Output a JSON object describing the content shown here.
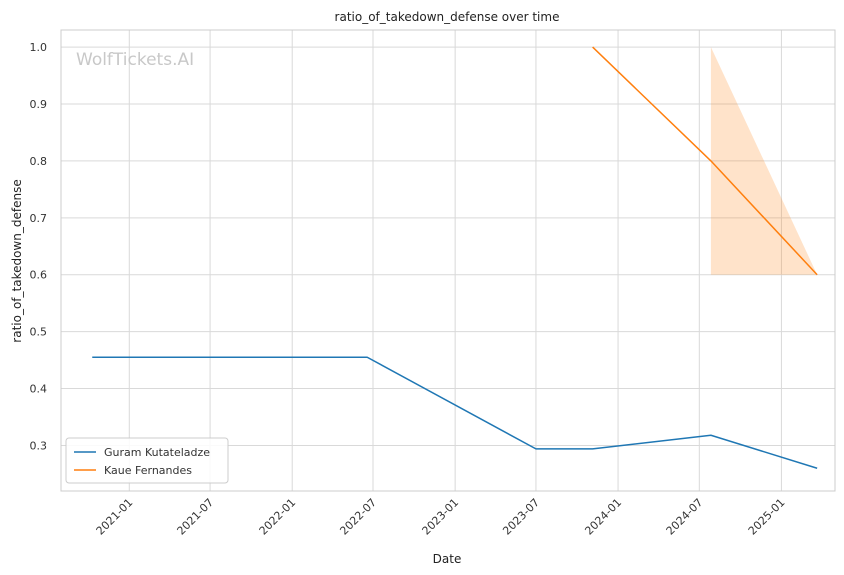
{
  "chart_data": {
    "type": "line",
    "title": "ratio_of_takedown_defense over time",
    "xlabel": "Date",
    "ylabel": "ratio_of_takedown_defense",
    "watermark": "WolfTickets.AI",
    "xlim": [
      "2020-08-01",
      "2025-05-01"
    ],
    "ylim": [
      0.22,
      1.03
    ],
    "x_ticks": [
      "2021-01-01",
      "2021-07-01",
      "2022-01-01",
      "2022-07-01",
      "2023-01-01",
      "2023-07-01",
      "2024-01-01",
      "2024-07-01",
      "2025-01-01"
    ],
    "x_tick_labels": [
      "2021-01",
      "2021-07",
      "2022-01",
      "2022-07",
      "2023-01",
      "2023-07",
      "2024-01",
      "2024-07",
      "2025-01"
    ],
    "y_ticks": [
      0.3,
      0.4,
      0.5,
      0.6,
      0.7,
      0.8,
      0.9,
      1.0
    ],
    "y_tick_labels": [
      "0.3",
      "0.4",
      "0.5",
      "0.6",
      "0.7",
      "0.8",
      "0.9",
      "1.0"
    ],
    "grid": true,
    "legend_position": "bottom-left",
    "series": [
      {
        "name": "Guram Kutateladze",
        "color": "#1f77b4",
        "x": [
          "2020-10-10",
          "2022-06-18",
          "2023-07-01",
          "2023-11-05",
          "2024-07-27",
          "2025-03-22"
        ],
        "y": [
          0.455,
          0.455,
          0.294,
          0.294,
          0.318,
          0.26
        ]
      },
      {
        "name": "Kaue Fernandes",
        "color": "#ff7f0e",
        "x": [
          "2023-11-05",
          "2024-07-27",
          "2025-03-22"
        ],
        "y": [
          1.0,
          0.8,
          0.6
        ],
        "band": {
          "x": [
            "2024-07-27",
            "2025-03-22"
          ],
          "lower": [
            0.6,
            0.6
          ],
          "upper": [
            1.0,
            0.6
          ]
        }
      }
    ]
  }
}
